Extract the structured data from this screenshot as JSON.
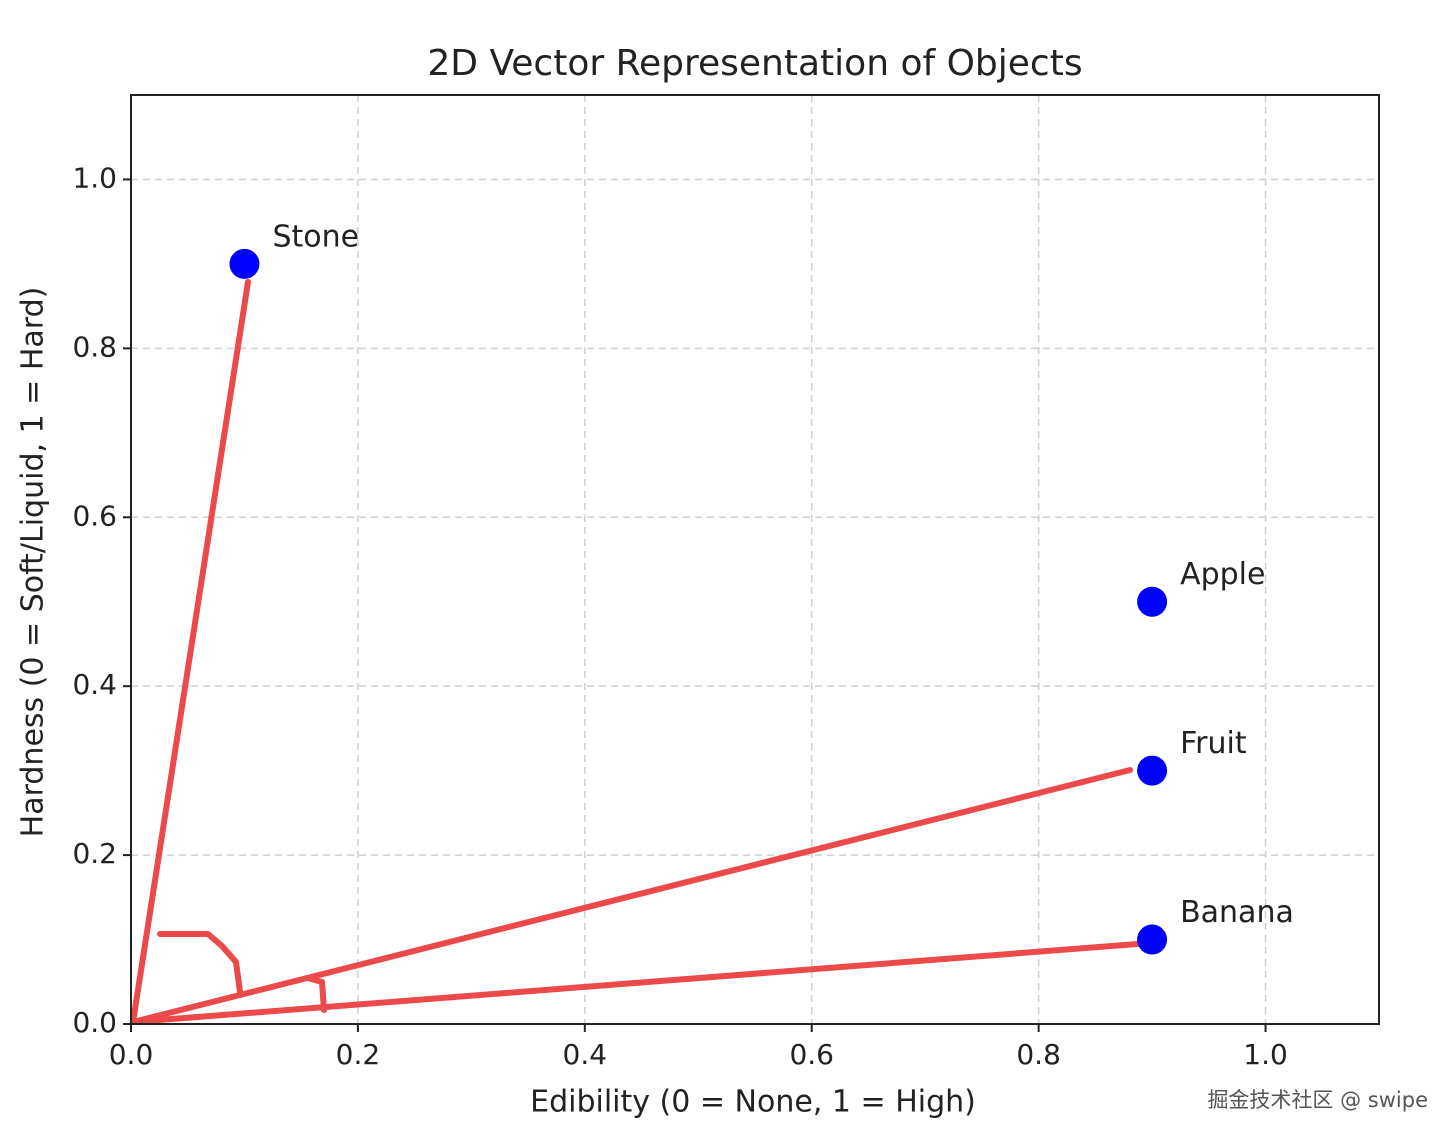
{
  "chart_data": {
    "type": "scatter",
    "title": "2D Vector Representation of Objects",
    "x_label": "Edibility (0 = None, 1 = High)",
    "y_label": "Hardness (0 = Soft/Liquid, 1 = Hard)",
    "points": [
      {
        "label": "Stone",
        "x": 0.1,
        "y": 0.9
      },
      {
        "label": "Apple",
        "x": 0.9,
        "y": 0.5
      },
      {
        "label": "Fruit",
        "x": 0.9,
        "y": 0.3
      },
      {
        "label": "Banana",
        "x": 0.9,
        "y": 0.1
      }
    ],
    "color": "#0000ff",
    "xlim": [
      0,
      1.1
    ],
    "ylim": [
      0,
      1.1
    ],
    "xticks": [
      {
        "value": 0,
        "label": "0.0"
      },
      0.2,
      0.4,
      0.6,
      0.8,
      {
        "value": 1,
        "label": "1.0"
      }
    ],
    "yticks": [
      {
        "value": 0,
        "label": "0.0"
      },
      0.2,
      0.4,
      0.6,
      0.8,
      {
        "value": 1,
        "label": "1.0"
      }
    ],
    "grid": true
  },
  "watermark": "掘金技术社区 @ swipe"
}
